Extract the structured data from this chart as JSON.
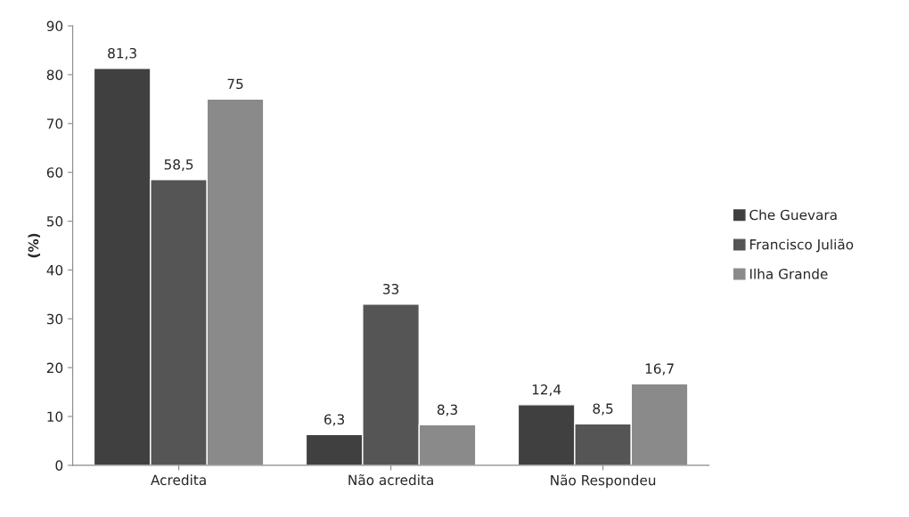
{
  "chart_data": {
    "type": "bar",
    "ylabel": "(%)",
    "categories": [
      "Acredita",
      "Não acredita",
      "Não Respondeu"
    ],
    "series": [
      {
        "name": "Che Guevara",
        "color": "#404040",
        "values": [
          81.3,
          6.3,
          12.4
        ],
        "value_labels": [
          "81,3",
          "6,3",
          "12,4"
        ]
      },
      {
        "name": "Francisco Julião",
        "color": "#555555",
        "values": [
          58.5,
          33,
          8.5
        ],
        "value_labels": [
          "58,5",
          "33",
          "8,5"
        ]
      },
      {
        "name": "Ilha Grande",
        "color": "#8a8a8a",
        "values": [
          75,
          8.3,
          16.7
        ],
        "value_labels": [
          "75",
          "8,3",
          "16,7"
        ]
      }
    ],
    "ylim": [
      0,
      90
    ],
    "yticks": [
      0,
      10,
      20,
      30,
      40,
      50,
      60,
      70,
      80,
      90
    ],
    "grid": false,
    "legend": "right"
  }
}
